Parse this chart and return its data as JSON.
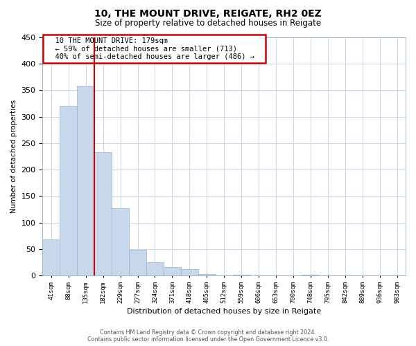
{
  "title": "10, THE MOUNT DRIVE, REIGATE, RH2 0EZ",
  "subtitle": "Size of property relative to detached houses in Reigate",
  "xlabel": "Distribution of detached houses by size in Reigate",
  "ylabel": "Number of detached properties",
  "bar_labels": [
    "41sqm",
    "88sqm",
    "135sqm",
    "182sqm",
    "229sqm",
    "277sqm",
    "324sqm",
    "371sqm",
    "418sqm",
    "465sqm",
    "512sqm",
    "559sqm",
    "606sqm",
    "653sqm",
    "700sqm",
    "748sqm",
    "795sqm",
    "842sqm",
    "889sqm",
    "936sqm",
    "983sqm"
  ],
  "bar_heights": [
    68,
    320,
    358,
    233,
    127,
    48,
    25,
    16,
    12,
    3,
    0,
    2,
    0,
    0,
    0,
    2,
    0,
    0,
    0,
    0,
    0
  ],
  "bar_color": "#c8d8ec",
  "bar_edge_color": "#a0b8d0",
  "vline_color": "#cc0000",
  "ylim": [
    0,
    450
  ],
  "yticks": [
    0,
    50,
    100,
    150,
    200,
    250,
    300,
    350,
    400,
    450
  ],
  "annotation_title": "10 THE MOUNT DRIVE: 179sqm",
  "annotation_line1": "← 59% of detached houses are smaller (713)",
  "annotation_line2": "40% of semi-detached houses are larger (486) →",
  "annotation_box_color": "#ffffff",
  "annotation_box_edge": "#cc0000",
  "footer_line1": "Contains HM Land Registry data © Crown copyright and database right 2024.",
  "footer_line2": "Contains public sector information licensed under the Open Government Licence v3.0.",
  "background_color": "#ffffff",
  "grid_color": "#c8d8e8"
}
